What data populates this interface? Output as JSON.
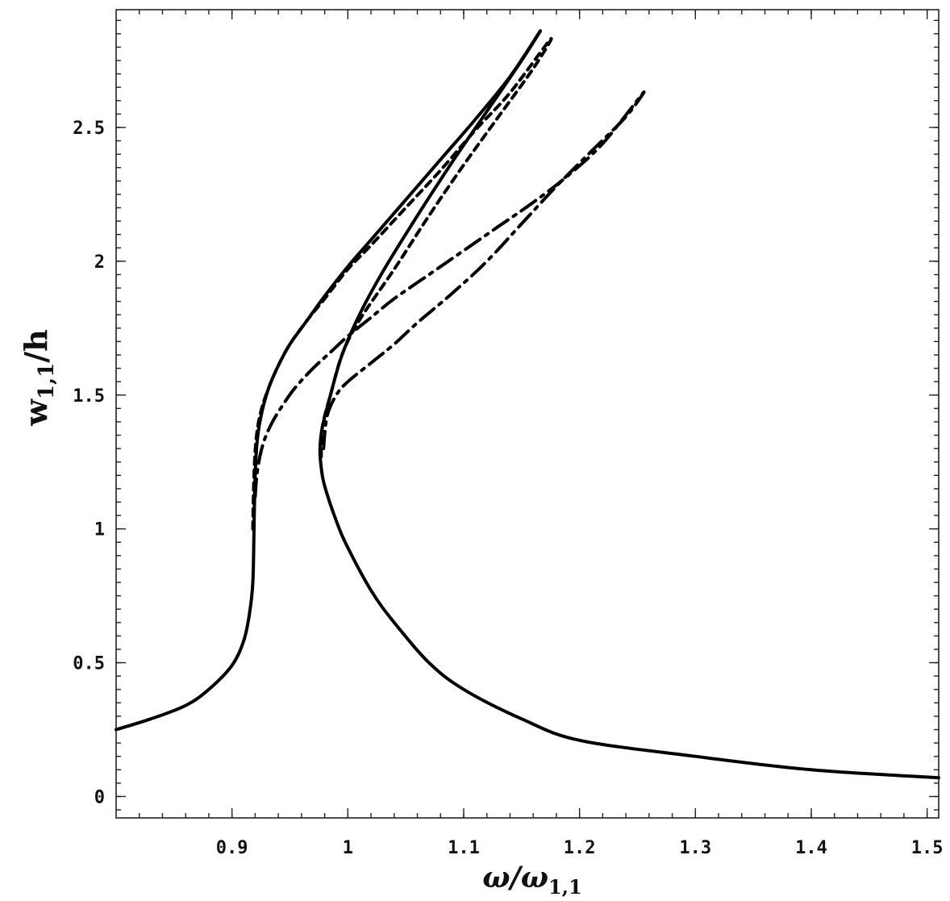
{
  "chart_data": {
    "type": "line",
    "title": "",
    "xlabel": "ω/ω",
    "xlabel_sub": "1,1",
    "ylabel": "w",
    "ylabel_sub": "1,1",
    "ylabel_suffix": "/h",
    "xlim": [
      0.8,
      1.51
    ],
    "ylim": [
      -0.08,
      2.94
    ],
    "x_ticks": [
      {
        "value": 0.9,
        "label": "0.9"
      },
      {
        "value": 1.0,
        "label": "1"
      },
      {
        "value": 1.1,
        "label": "1.1"
      },
      {
        "value": 1.2,
        "label": "1.2"
      },
      {
        "value": 1.3,
        "label": "1.3"
      },
      {
        "value": 1.4,
        "label": "1.4"
      },
      {
        "value": 1.5,
        "label": "1.5"
      }
    ],
    "y_ticks": [
      {
        "value": 0,
        "label": "0"
      },
      {
        "value": 0.5,
        "label": "0.5"
      },
      {
        "value": 1.0,
        "label": "1"
      },
      {
        "value": 1.5,
        "label": "1.5"
      },
      {
        "value": 2.0,
        "label": "2"
      },
      {
        "value": 2.5,
        "label": "2.5"
      }
    ],
    "grid": false,
    "legend": "none",
    "series": [
      {
        "style": "solid",
        "x": [
          0.8,
          0.83,
          0.86,
          0.88,
          0.9,
          0.91,
          0.915,
          0.918,
          0.919,
          0.92,
          0.922,
          0.926,
          0.932,
          0.94,
          0.95,
          0.965,
          0.98,
          1.0,
          1.02,
          1.05,
          1.08,
          1.11,
          1.14,
          1.166,
          1.15,
          1.12,
          1.09,
          1.06,
          1.03,
          1.01,
          0.995,
          0.985,
          0.978,
          0.976,
          0.977,
          0.98,
          0.99,
          1.0,
          1.02,
          1.04,
          1.07,
          1.1,
          1.15,
          1.2,
          1.3,
          1.4,
          1.51
        ],
        "y": [
          0.25,
          0.29,
          0.34,
          0.4,
          0.49,
          0.58,
          0.68,
          0.8,
          1.0,
          1.2,
          1.34,
          1.44,
          1.53,
          1.61,
          1.69,
          1.78,
          1.87,
          1.98,
          2.08,
          2.23,
          2.38,
          2.53,
          2.69,
          2.86,
          2.75,
          2.56,
          2.37,
          2.17,
          1.96,
          1.8,
          1.65,
          1.5,
          1.38,
          1.3,
          1.23,
          1.16,
          1.03,
          0.93,
          0.77,
          0.65,
          0.5,
          0.4,
          0.29,
          0.21,
          0.15,
          0.1,
          0.07
        ]
      },
      {
        "style": "dashed",
        "x": [
          0.918,
          0.919,
          0.921,
          0.925,
          0.932,
          0.94,
          0.95,
          0.965,
          0.98,
          1.0,
          1.02,
          1.05,
          1.08,
          1.11,
          1.14,
          1.175,
          1.16,
          1.13,
          1.1,
          1.07,
          1.04,
          1.01,
          0.995,
          0.985,
          0.978,
          0.977
        ],
        "y": [
          1.0,
          1.2,
          1.34,
          1.44,
          1.53,
          1.61,
          1.69,
          1.78,
          1.86,
          1.97,
          2.06,
          2.2,
          2.34,
          2.49,
          2.63,
          2.83,
          2.72,
          2.54,
          2.36,
          2.17,
          1.97,
          1.78,
          1.65,
          1.5,
          1.38,
          1.27
        ]
      },
      {
        "style": "dash-dot",
        "x": [
          0.92,
          0.922,
          0.927,
          0.935,
          0.945,
          0.955,
          0.97,
          0.985,
          1.0,
          1.02,
          1.04,
          1.07,
          1.1,
          1.13,
          1.16,
          1.19,
          1.22,
          1.255,
          1.24,
          1.21,
          1.18,
          1.15,
          1.12,
          1.09,
          1.06,
          1.04,
          1.02,
          1.0,
          0.99,
          0.982,
          0.979
        ],
        "y": [
          1.12,
          1.22,
          1.32,
          1.4,
          1.47,
          1.53,
          1.6,
          1.66,
          1.72,
          1.79,
          1.86,
          1.95,
          2.04,
          2.13,
          2.22,
          2.32,
          2.44,
          2.63,
          2.54,
          2.41,
          2.28,
          2.14,
          2.0,
          1.88,
          1.77,
          1.69,
          1.62,
          1.55,
          1.5,
          1.42,
          1.3
        ]
      }
    ]
  }
}
